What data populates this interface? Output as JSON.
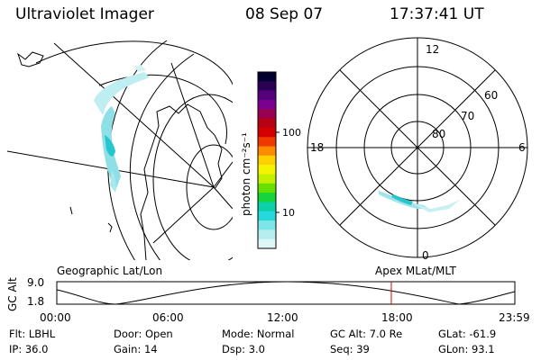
{
  "header": {
    "instrument": "Ultraviolet Imager",
    "date": "08 Sep 07",
    "time": "17:37:41 UT"
  },
  "colorbar": {
    "unit_label": "photon cm⁻²s⁻¹",
    "ticks": [
      "100",
      "10"
    ],
    "colors": [
      "#000030",
      "#2a0055",
      "#55007a",
      "#7a0090",
      "#9a0050",
      "#b80015",
      "#d40000",
      "#ee3a00",
      "#ff8c00",
      "#ffd000",
      "#f4f400",
      "#c4ef00",
      "#66e000",
      "#18d43c",
      "#0cd0a8",
      "#26d8dc",
      "#7ee4e8",
      "#b6eef0",
      "#dff6f8"
    ]
  },
  "geo_panel": {
    "label": "Geographic Lat/Lon"
  },
  "polar_panel": {
    "label": "Apex  MLat/MLT",
    "clock_labels": {
      "top": "12",
      "left": "18",
      "right": "6",
      "bottom": "0"
    },
    "lat_labels": [
      "60",
      "70",
      "80"
    ]
  },
  "timeline": {
    "ylabel": "GC Alt",
    "y_ticks": [
      "9.0",
      "1.8"
    ],
    "x_ticks": [
      "00:00",
      "06:00",
      "12:00",
      "18:00",
      "23:59"
    ],
    "marker_color": "#e00000"
  },
  "status": {
    "row1": [
      {
        "key": "Flt:",
        "value": "LBHL"
      },
      {
        "key": "Door:",
        "value": "Open"
      },
      {
        "key": "Mode:",
        "value": "Normal"
      },
      {
        "key": "GC Alt:",
        "value": "7.0 Re"
      },
      {
        "key": "GLat:",
        "value": "-61.9"
      }
    ],
    "row2": [
      {
        "key": "IP:",
        "value": "36.0"
      },
      {
        "key": "Gain:",
        "value": "14"
      },
      {
        "key": "Dsp:",
        "value": "3.0"
      },
      {
        "key": "Seq:",
        "value": "39"
      },
      {
        "key": "GLon:",
        "value": "93.1"
      }
    ]
  },
  "accent": {
    "aurora": "#7fd9e0",
    "aurora_core": "#27c6cf"
  }
}
